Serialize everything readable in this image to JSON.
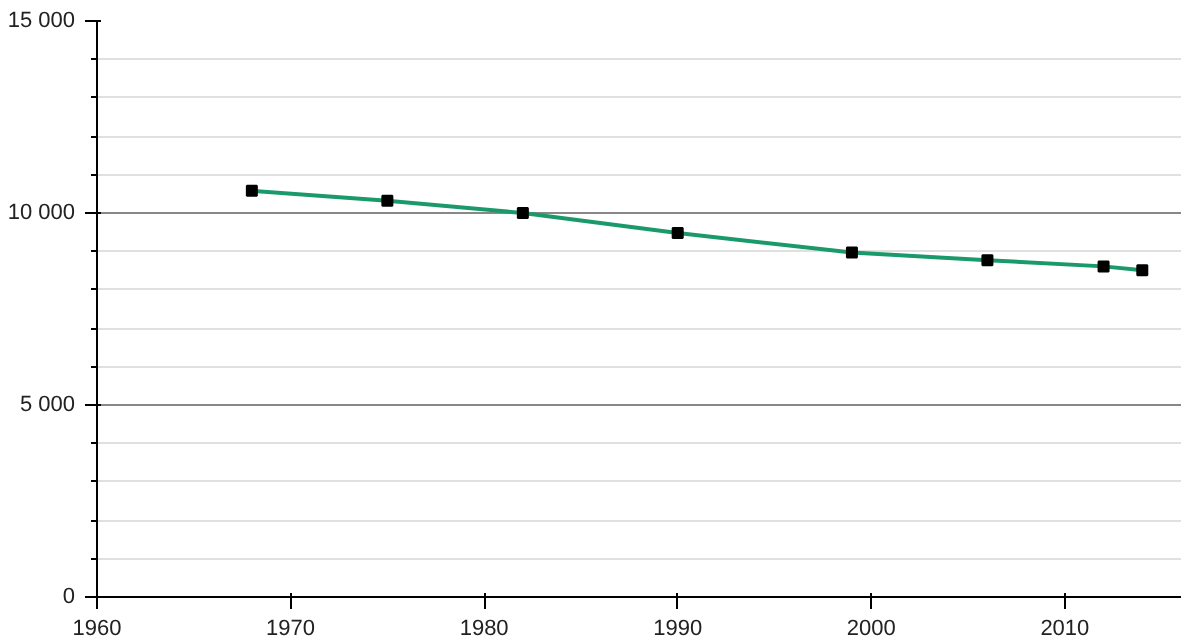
{
  "chart_data": {
    "type": "line",
    "x": [
      1968,
      1975,
      1982,
      1990,
      1999,
      2006,
      2012,
      2014
    ],
    "series": [
      {
        "color": "#1a9a6a",
        "values": [
          10580,
          10320,
          10000,
          9480,
          8970,
          8770,
          8610,
          8510
        ]
      }
    ],
    "xlim": [
      1960,
      2016
    ],
    "xticks": [
      1960,
      1970,
      1980,
      1990,
      2000,
      2010
    ],
    "ylim": [
      0,
      15000
    ],
    "yticks": [
      {
        "value": 0,
        "label": "0"
      },
      {
        "value": 1000,
        "label": null
      },
      {
        "value": 2000,
        "label": null
      },
      {
        "value": 3000,
        "label": null
      },
      {
        "value": 4000,
        "label": null
      },
      {
        "value": 5000,
        "label": "5 000"
      },
      {
        "value": 6000,
        "label": null
      },
      {
        "value": 7000,
        "label": null
      },
      {
        "value": 8000,
        "label": null
      },
      {
        "value": 9000,
        "label": null
      },
      {
        "value": 10000,
        "label": "10 000"
      },
      {
        "value": 11000,
        "label": null
      },
      {
        "value": 12000,
        "label": null
      },
      {
        "value": 13000,
        "label": null
      },
      {
        "value": 14000,
        "label": null
      },
      {
        "value": 15000,
        "label": "15 000"
      }
    ],
    "grid": "y",
    "marker": "square",
    "line_style": "solid"
  }
}
